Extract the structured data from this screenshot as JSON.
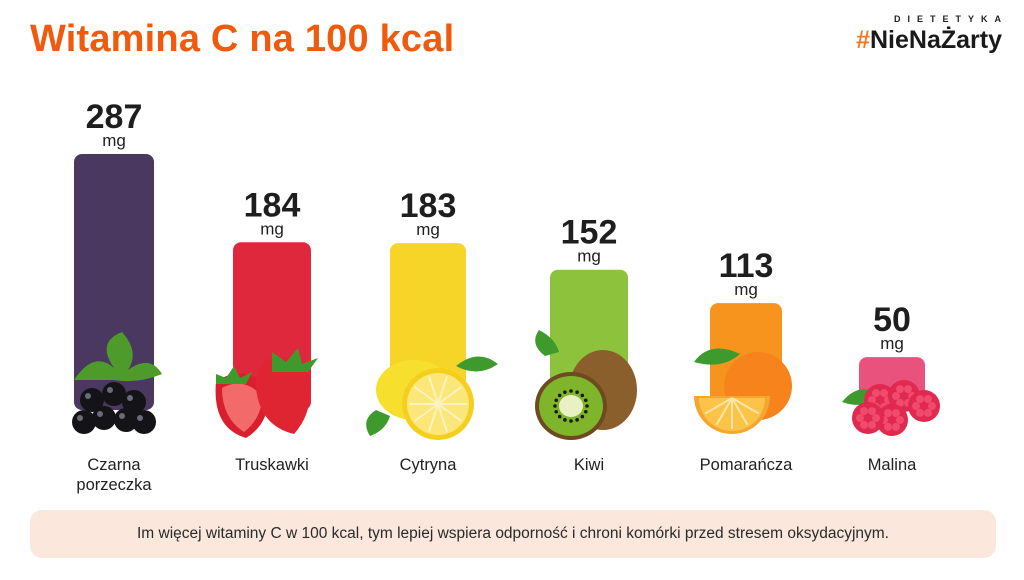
{
  "title": "Witamina C na 100 kcal",
  "logo": {
    "top": "DIETETYKA",
    "hash": "#",
    "main": "NieNaŻarty"
  },
  "footer": "Im więcej witaminy C w 100 kcal, tym lepiej wspiera odporność i chroni komórki przed stresem oksydacyjnym.",
  "chart_data": {
    "type": "bar",
    "title": "Witamina C na 100 kcal",
    "unit": "mg",
    "categories": [
      [
        "Czarna",
        "porzeczka"
      ],
      [
        "Truskawki"
      ],
      [
        "Cytryna"
      ],
      [
        "Kiwi"
      ],
      [
        "Pomarańcza"
      ],
      [
        "Malina"
      ]
    ],
    "values": [
      287,
      184,
      183,
      152,
      113,
      50
    ],
    "colors": [
      "#4a3860",
      "#e0283c",
      "#f7d528",
      "#8cc23c",
      "#f7941d",
      "#e8527d"
    ],
    "icons": [
      "blackcurrant-icon",
      "strawberry-icon",
      "lemon-icon",
      "kiwi-icon",
      "orange-icon",
      "raspberry-icon"
    ]
  }
}
